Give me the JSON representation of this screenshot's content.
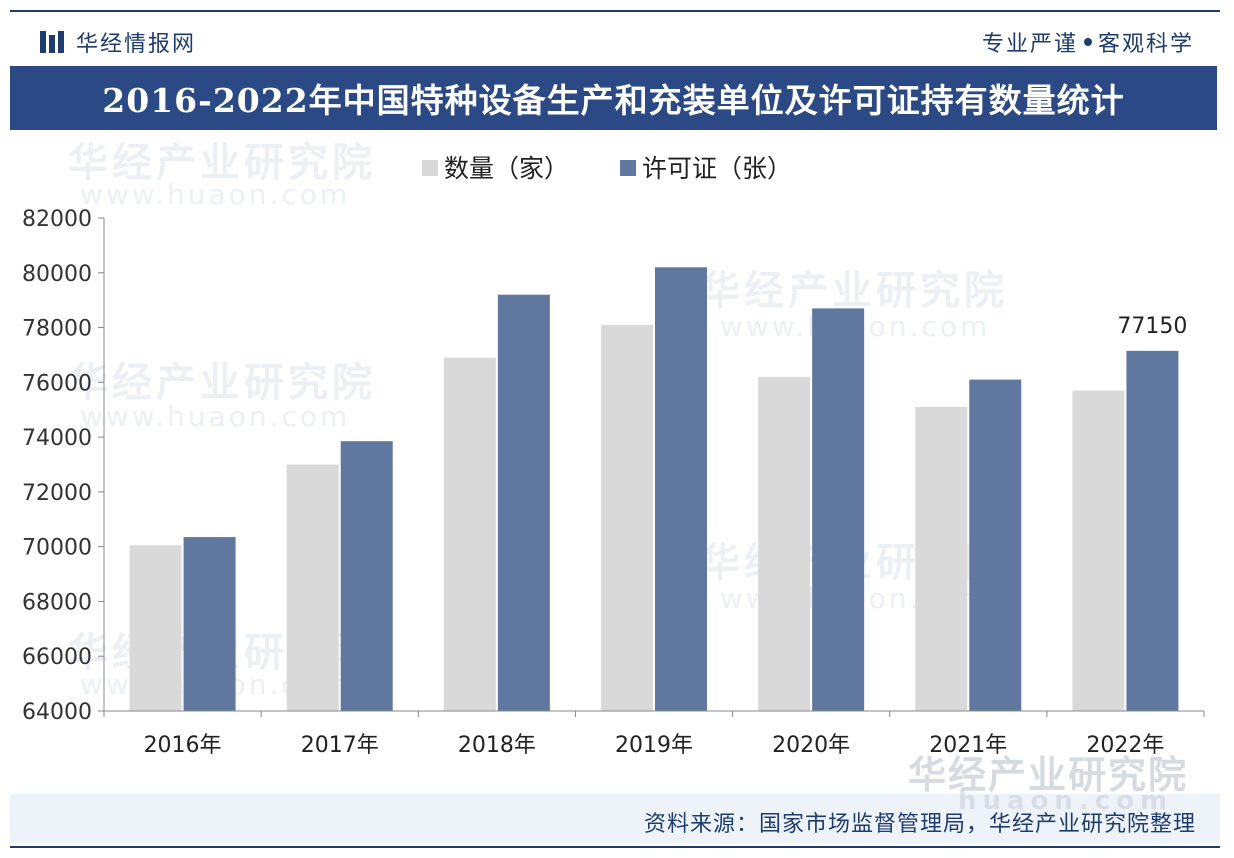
{
  "header": {
    "brand": "华经情报网",
    "slogan_left": "专业严谨",
    "slogan_right": "客观科学"
  },
  "chart_data": {
    "type": "bar",
    "title": "2016-2022年中国特种设备生产和充装单位及许可证持有数量统计",
    "categories": [
      "2016年",
      "2017年",
      "2018年",
      "2019年",
      "2020年",
      "2021年",
      "2022年"
    ],
    "series": [
      {
        "name": "数量（家）",
        "color": "#d9d9d9",
        "values": [
          70050,
          73000,
          76900,
          78100,
          76200,
          75100,
          75700
        ]
      },
      {
        "name": "许可证（张）",
        "color": "#60779f",
        "values": [
          70350,
          73850,
          79200,
          80200,
          78700,
          76100,
          77150
        ]
      }
    ],
    "ylim": [
      64000,
      82000
    ],
    "yticks": [
      64000,
      66000,
      68000,
      70000,
      72000,
      74000,
      76000,
      78000,
      80000,
      82000
    ],
    "data_labels": [
      {
        "series": 1,
        "index": 6,
        "text": "77150"
      }
    ],
    "legend_position": "top-center",
    "grid": false
  },
  "footer": {
    "source": "资料来源：国家市场监督管理局，华经产业研究院整理"
  },
  "watermark": {
    "text": "华经产业研究院",
    "url": "www.huaon.com",
    "corner_text": "华经产业研究院",
    "corner_url": "huaon.com"
  }
}
